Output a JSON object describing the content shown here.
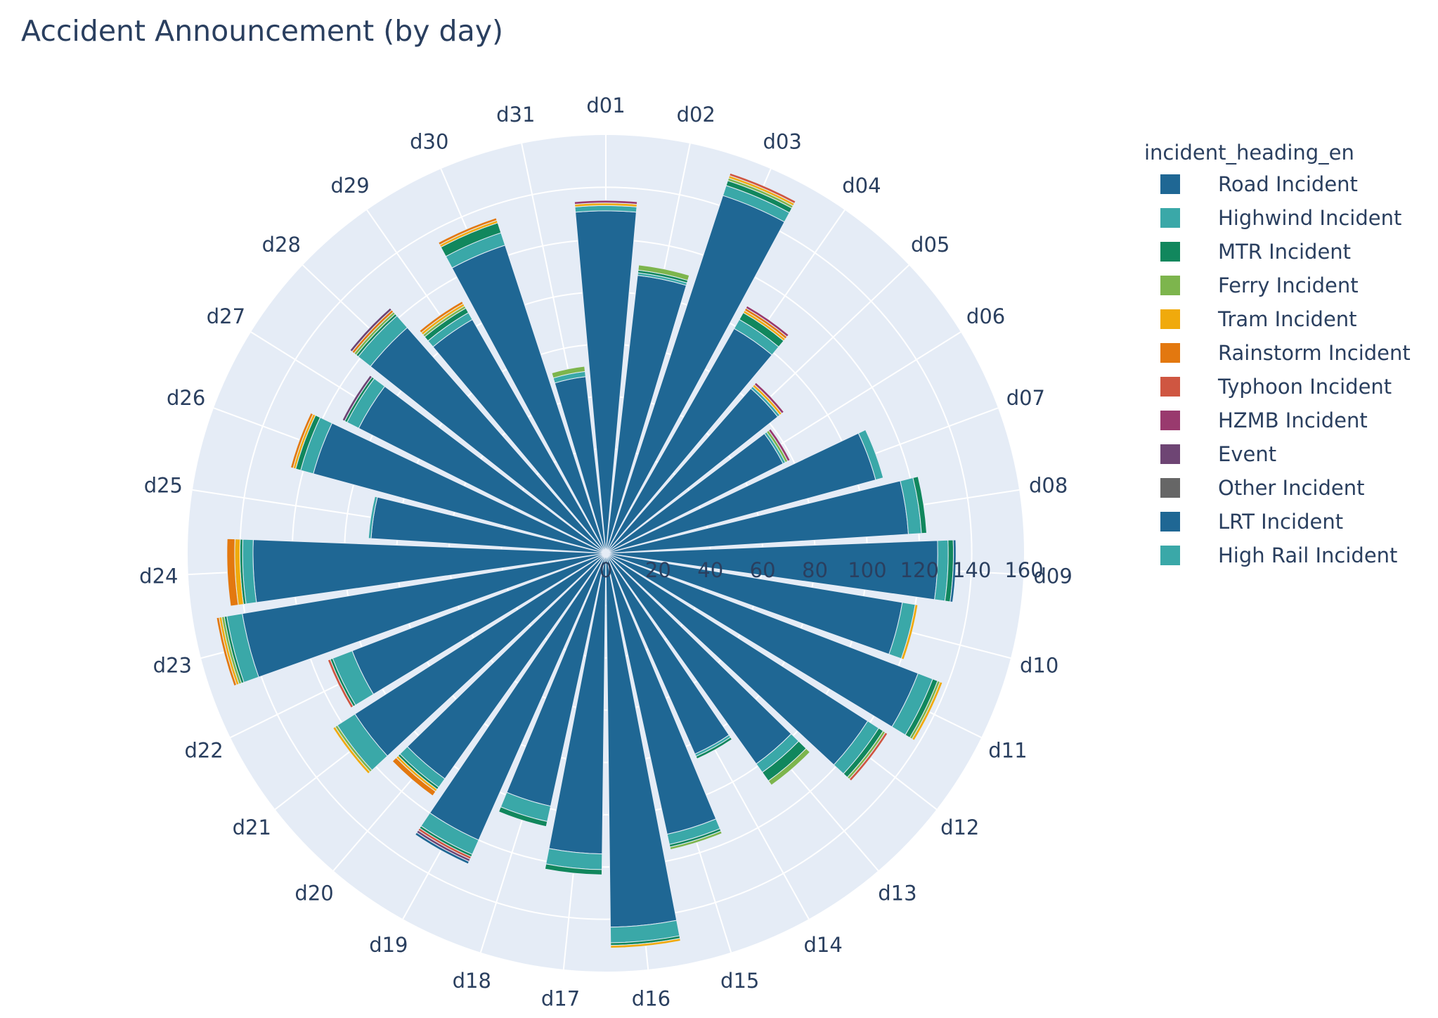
{
  "chart_data": {
    "type": "barpolar",
    "title": "Accident Announcement (by day)",
    "legend_title": "incident_heading_en",
    "legend_position": "right",
    "categories": [
      "d01",
      "d02",
      "d03",
      "d04",
      "d05",
      "d06",
      "d07",
      "d08",
      "d09",
      "d10",
      "d11",
      "d12",
      "d13",
      "d14",
      "d15",
      "d16",
      "d17",
      "d18",
      "d19",
      "d20",
      "d21",
      "d22",
      "d23",
      "d24",
      "d25",
      "d26",
      "d27",
      "d28",
      "d29",
      "d30",
      "d31"
    ],
    "radial_range": [
      0,
      160
    ],
    "radial_ticks": [
      "0",
      "20",
      "40",
      "60",
      "80",
      "100",
      "120",
      "140",
      "160"
    ],
    "series": [
      {
        "name": "Road Incident",
        "color": "#1f6794",
        "values": [
          131,
          107,
          144,
          99,
          84,
          76,
          107,
          116,
          127,
          115,
          128,
          119,
          99,
          84,
          110,
          143,
          115,
          99,
          120,
          106,
          114,
          104,
          141,
          135,
          90,
          116,
          106,
          115,
          103,
          124,
          68
        ]
      },
      {
        "name": "Highwind Incident",
        "color": "#3aa8a8",
        "values": [
          2,
          1,
          4,
          4,
          1,
          1,
          3,
          5,
          4,
          5,
          6,
          5,
          4,
          1,
          4,
          6,
          6,
          6,
          6,
          4,
          8,
          8,
          6,
          4,
          1,
          5,
          5,
          6,
          3,
          5,
          2
        ]
      },
      {
        "name": "MTR Incident",
        "color": "#11875d",
        "values": [
          0,
          1,
          2,
          3,
          0,
          0,
          0,
          2,
          2,
          0,
          2,
          2,
          4,
          1,
          1,
          1,
          2,
          2,
          1,
          1,
          0,
          1,
          1,
          1,
          0,
          2,
          1,
          1,
          2,
          4,
          0
        ]
      },
      {
        "name": "Ferry Incident",
        "color": "#7db54d",
        "values": [
          0,
          2,
          1,
          0,
          0,
          1,
          0,
          0,
          0,
          0,
          1,
          1,
          2,
          0,
          1,
          0,
          0,
          0,
          0,
          0,
          1,
          0,
          1,
          0,
          0,
          0,
          0,
          1,
          1,
          0,
          2
        ]
      },
      {
        "name": "Tram Incident",
        "color": "#f0aa0c",
        "values": [
          1,
          0,
          1,
          1,
          1,
          0,
          0,
          0,
          0,
          1,
          1,
          0,
          0,
          0,
          0,
          1,
          0,
          0,
          0,
          1,
          1,
          0,
          1,
          2,
          0,
          1,
          0,
          0,
          1,
          1,
          0
        ]
      },
      {
        "name": "Rainstorm Incident",
        "color": "#e3780f",
        "values": [
          0,
          0,
          0,
          1,
          0,
          0,
          0,
          0,
          0,
          0,
          0,
          0,
          0,
          0,
          0,
          0,
          0,
          0,
          0,
          2,
          0,
          0,
          1,
          3,
          0,
          1,
          0,
          1,
          1,
          1,
          0
        ]
      },
      {
        "name": "Typhoon Incident",
        "color": "#cf5641",
        "values": [
          0,
          0,
          1,
          0,
          0,
          0,
          0,
          0,
          0,
          0,
          0,
          1,
          0,
          0,
          0,
          0,
          0,
          0,
          1,
          0,
          0,
          1,
          0,
          0,
          0,
          0,
          0,
          0,
          0,
          0,
          0
        ]
      },
      {
        "name": "HZMB Incident",
        "color": "#993a6e",
        "values": [
          1,
          0,
          0,
          1,
          1,
          1,
          0,
          0,
          0,
          0,
          0,
          0,
          0,
          0,
          0,
          0,
          0,
          0,
          0,
          0,
          0,
          0,
          0,
          0,
          0,
          0,
          0,
          0,
          0,
          0,
          0
        ]
      },
      {
        "name": "Event",
        "color": "#6e4574",
        "values": [
          0,
          0,
          0,
          0,
          0,
          0,
          0,
          0,
          0,
          0,
          0,
          0,
          0,
          0,
          0,
          0,
          0,
          0,
          1,
          0,
          0,
          0,
          0,
          0,
          0,
          0,
          1,
          1,
          0,
          0,
          0
        ]
      },
      {
        "name": "Other Incident",
        "color": "#666666",
        "values": [
          0,
          0,
          0,
          0,
          0,
          0,
          0,
          0,
          0,
          0,
          0,
          0,
          0,
          0,
          0,
          0,
          0,
          0,
          0,
          0,
          0,
          0,
          0,
          0,
          0,
          0,
          0,
          0,
          0,
          0,
          0
        ]
      },
      {
        "name": "LRT Incident",
        "color": "#1f6794",
        "values": [
          0,
          0,
          0,
          0,
          0,
          0,
          0,
          0,
          1,
          0,
          0,
          0,
          0,
          0,
          0,
          0,
          0,
          0,
          1,
          0,
          0,
          0,
          0,
          0,
          0,
          0,
          0,
          0,
          0,
          0,
          0
        ]
      },
      {
        "name": "High Rail Incident",
        "color": "#3aa8a8",
        "values": [
          0,
          0,
          0,
          0,
          0,
          0,
          0,
          0,
          0,
          0,
          0,
          0,
          0,
          0,
          0,
          0,
          0,
          0,
          0,
          0,
          0,
          0,
          0,
          0,
          0,
          0,
          0,
          0,
          0,
          0,
          0
        ]
      }
    ],
    "colors": {
      "polar_background": "#e5ecf6",
      "grid": "#ffffff",
      "text": "#2a3f5f"
    }
  }
}
